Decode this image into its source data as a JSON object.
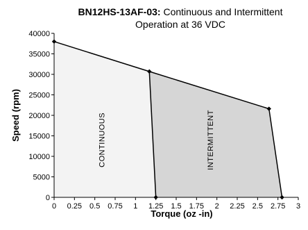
{
  "chart_data": {
    "type": "area",
    "title": {
      "prefix": "BN12HS-13AF-03:",
      "line1_rest": " Continuous and Intermittent",
      "line2": "Operation at 36 VDC"
    },
    "xlabel": "Torque (oz -in)",
    "ylabel": "Speed (rpm)",
    "xlim": [
      0,
      3
    ],
    "ylim": [
      0,
      40000
    ],
    "x_ticks": [
      0,
      0.25,
      0.5,
      0.75,
      1,
      1.25,
      1.5,
      1.75,
      2,
      2.25,
      2.5,
      2.75,
      3
    ],
    "x_tick_labels": [
      "0",
      "0.25",
      "0.5",
      "0.75",
      "1",
      "1.25",
      "1.5",
      "1.75",
      "2",
      "2.25",
      "2.5",
      "2.75",
      "3"
    ],
    "y_ticks": [
      0,
      5000,
      10000,
      15000,
      20000,
      25000,
      30000,
      35000,
      40000
    ],
    "y_tick_labels": [
      "0",
      "5000",
      "10000",
      "15000",
      "20000",
      "25000",
      "30000",
      "35000",
      "40000"
    ],
    "grid": false,
    "regions": [
      {
        "label": "CONTINUOUS",
        "fill": "#f3f3f3",
        "polygon": [
          [
            0,
            0
          ],
          [
            0,
            38000
          ],
          [
            1.17,
            30700
          ],
          [
            1.25,
            0
          ]
        ],
        "label_at": [
          0.62,
          14000
        ]
      },
      {
        "label": "INTERMITTENT",
        "fill": "#d6d6d6",
        "polygon": [
          [
            1.25,
            0
          ],
          [
            1.17,
            30700
          ],
          [
            2.64,
            21600
          ],
          [
            2.8,
            0
          ]
        ],
        "label_at": [
          1.95,
          14000
        ]
      }
    ],
    "boundary_points": {
      "x": [
        0,
        1.17,
        2.64,
        2.8
      ],
      "y": [
        38000,
        30700,
        21600,
        0
      ]
    },
    "continuous_limit_points": {
      "x": [
        1.17,
        1.25
      ],
      "y": [
        30700,
        0
      ]
    },
    "colors": {
      "line": "#000000",
      "marker": "#000000"
    }
  }
}
